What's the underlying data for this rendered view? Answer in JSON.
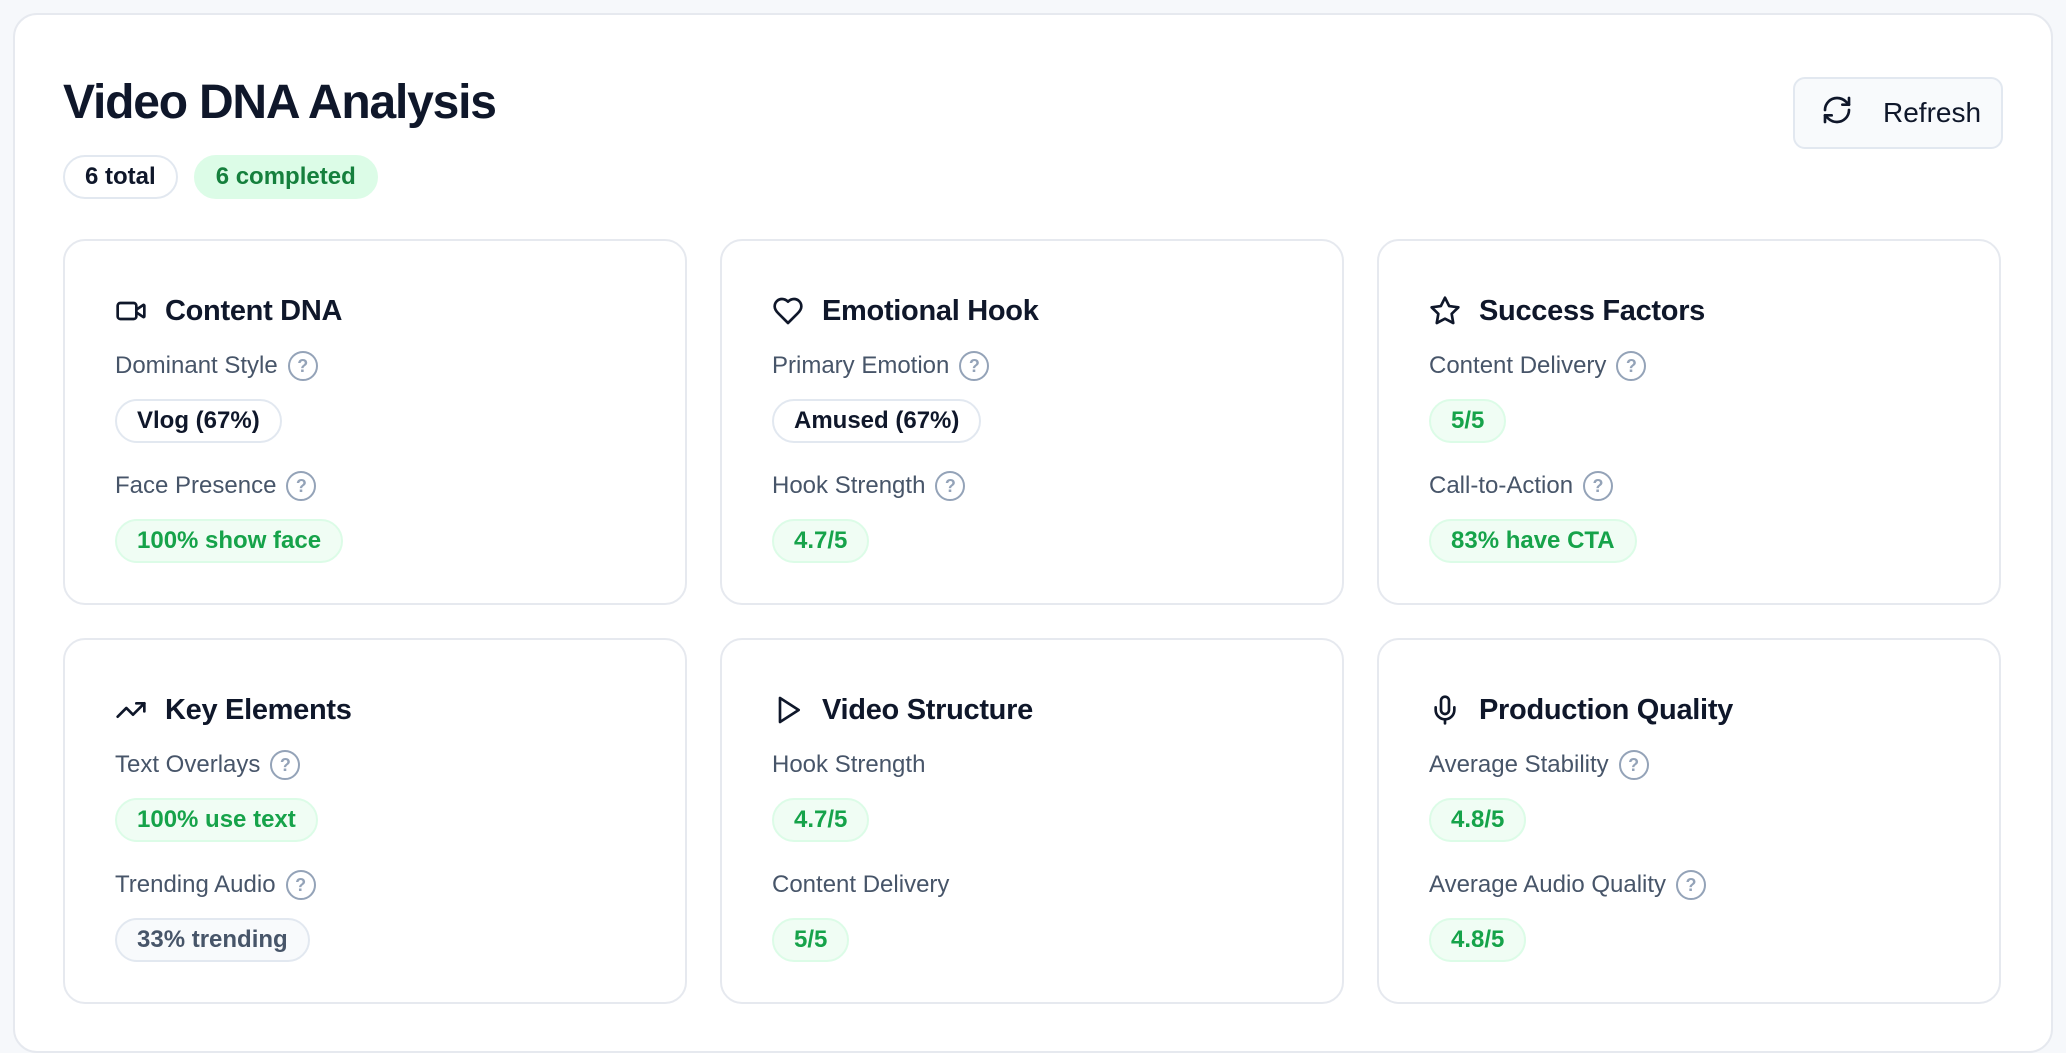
{
  "header": {
    "title": "Video DNA Analysis",
    "total_badge": "6 total",
    "completed_badge": "6 completed",
    "refresh_label": "Refresh"
  },
  "cards": [
    {
      "title": "Content DNA",
      "icon": "video-camera-icon",
      "metrics": [
        {
          "label": "Dominant Style",
          "value": "Vlog (67%)",
          "style": "neutral",
          "help": true
        },
        {
          "label": "Face Presence",
          "value": "100% show face",
          "style": "green",
          "help": true
        }
      ]
    },
    {
      "title": "Emotional Hook",
      "icon": "heart-icon",
      "metrics": [
        {
          "label": "Primary Emotion",
          "value": "Amused (67%)",
          "style": "neutral",
          "help": true
        },
        {
          "label": "Hook Strength",
          "value": "4.7/5",
          "style": "green",
          "help": true
        }
      ]
    },
    {
      "title": "Success Factors",
      "icon": "star-icon",
      "metrics": [
        {
          "label": "Content Delivery",
          "value": "5/5",
          "style": "green",
          "help": true
        },
        {
          "label": "Call-to-Action",
          "value": "83% have CTA",
          "style": "green",
          "help": true
        }
      ]
    },
    {
      "title": "Key Elements",
      "icon": "trending-up-icon",
      "metrics": [
        {
          "label": "Text Overlays",
          "value": "100% use text",
          "style": "green",
          "help": true
        },
        {
          "label": "Trending Audio",
          "value": "33% trending",
          "style": "gray",
          "help": true
        }
      ]
    },
    {
      "title": "Video Structure",
      "icon": "play-icon",
      "metrics": [
        {
          "label": "Hook Strength",
          "value": "4.7/5",
          "style": "green",
          "help": false
        },
        {
          "label": "Content Delivery",
          "value": "5/5",
          "style": "green",
          "help": false
        }
      ]
    },
    {
      "title": "Production Quality",
      "icon": "microphone-icon",
      "metrics": [
        {
          "label": "Average Stability",
          "value": "4.8/5",
          "style": "green",
          "help": true
        },
        {
          "label": "Average Audio Quality",
          "value": "4.8/5",
          "style": "green",
          "help": true
        }
      ]
    }
  ],
  "help_glyph": "?",
  "colors": {
    "accent_green": "#16a34a",
    "green_bg": "#f0fdf4",
    "text_primary": "#0f172a",
    "text_secondary": "#475569",
    "border": "#e6e9ef"
  }
}
